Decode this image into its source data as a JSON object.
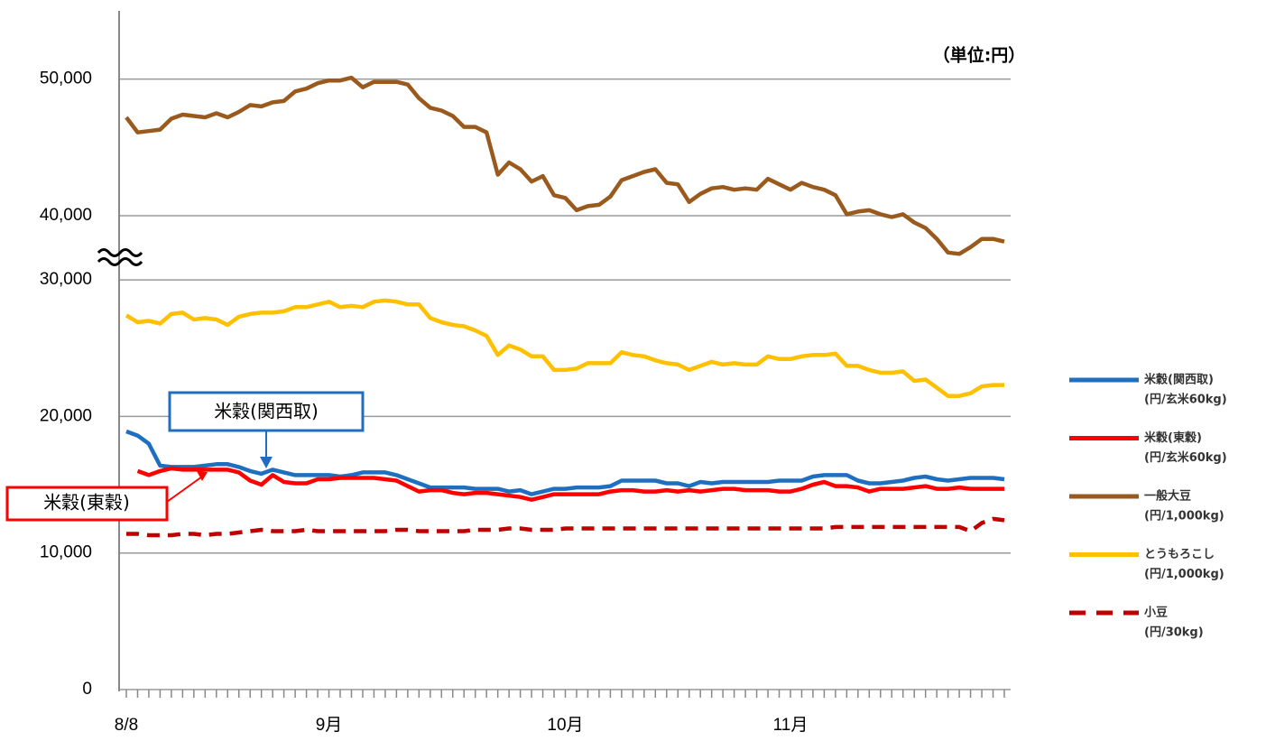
{
  "chart_data": {
    "type": "line",
    "unit_note": "（単位:円）",
    "categories": [
      "8/8",
      null,
      null,
      null,
      null,
      null,
      null,
      null,
      null,
      null,
      null,
      null,
      null,
      null,
      null,
      null,
      null,
      null,
      "9月",
      null,
      null,
      null,
      null,
      null,
      null,
      null,
      null,
      null,
      null,
      null,
      null,
      null,
      null,
      null,
      null,
      null,
      null,
      null,
      null,
      "10月",
      null,
      null,
      null,
      null,
      null,
      null,
      null,
      null,
      null,
      null,
      null,
      null,
      null,
      null,
      null,
      null,
      null,
      null,
      null,
      "11月",
      null,
      null,
      null,
      null,
      null,
      null,
      null,
      null,
      null,
      null,
      null,
      null,
      null,
      null,
      null,
      null,
      null,
      null,
      null
    ],
    "ylim": [
      0,
      55000
    ],
    "axis_break": [
      30500,
      35800
    ],
    "yticks": [
      0,
      {
        "value": 10000,
        "label": "10,000"
      },
      {
        "value": 20000,
        "label": "20,000"
      },
      {
        "value": 30000,
        "label": "30,000"
      },
      {
        "value": 40000,
        "label": "40,000"
      },
      {
        "value": 50000,
        "label": "50,000"
      }
    ],
    "grid": true,
    "legend": "right",
    "series": [
      {
        "name": "米穀(関西取)",
        "unit": "(円/玄米60kg)",
        "color": "#1f6fc0",
        "dash": false,
        "values": [
          18900,
          18600,
          18000,
          16400,
          16300,
          16300,
          16300,
          16400,
          16500,
          16500,
          16300,
          16000,
          15800,
          16100,
          15900,
          15700,
          15700,
          15700,
          15700,
          15600,
          15700,
          15900,
          15900,
          15900,
          15700,
          15400,
          15100,
          14800,
          14800,
          14800,
          14800,
          14700,
          14700,
          14700,
          14500,
          14600,
          14300,
          14500,
          14700,
          14700,
          14800,
          14800,
          14800,
          14900,
          15300,
          15300,
          15300,
          15300,
          15100,
          15100,
          14900,
          15200,
          15100,
          15200,
          15200,
          15200,
          15200,
          15200,
          15300,
          15300,
          15300,
          15600,
          15700,
          15700,
          15700,
          15300,
          15100,
          15100,
          15200,
          15300,
          15500,
          15600,
          15400,
          15300,
          15400,
          15500,
          15500,
          15500,
          15400
        ]
      },
      {
        "name": "米穀(東穀)",
        "unit": "(円/玄米60kg)",
        "color": "#ff0000",
        "dash": false,
        "values": [
          null,
          16000,
          15700,
          16000,
          16200,
          16100,
          16100,
          16100,
          16100,
          16100,
          15900,
          15300,
          15000,
          15700,
          15200,
          15100,
          15100,
          15400,
          15400,
          15500,
          15500,
          15500,
          15500,
          15400,
          15300,
          14900,
          14500,
          14600,
          14600,
          14400,
          14300,
          14400,
          14400,
          14300,
          14200,
          14100,
          13900,
          14100,
          14300,
          14300,
          14300,
          14300,
          14300,
          14500,
          14600,
          14600,
          14500,
          14500,
          14600,
          14500,
          14600,
          14500,
          14600,
          14700,
          14700,
          14600,
          14600,
          14600,
          14500,
          14500,
          14700,
          15000,
          15200,
          14900,
          14900,
          14800,
          14500,
          14700,
          14700,
          14700,
          14800,
          14900,
          14700,
          14700,
          14800,
          14700,
          14700,
          14700,
          14700
        ]
      },
      {
        "name": "一般大豆",
        "unit": "(円/1,000kg)",
        "color": "#9a5a1e",
        "dash": false,
        "values": [
          47200,
          46100,
          46200,
          46300,
          47100,
          47400,
          47300,
          47200,
          47500,
          47200,
          47600,
          48100,
          48000,
          48300,
          48400,
          49100,
          49300,
          49700,
          49900,
          49900,
          50100,
          49400,
          49800,
          49800,
          49800,
          49600,
          48600,
          47900,
          47700,
          47300,
          46500,
          46500,
          46100,
          43000,
          43900,
          43400,
          42500,
          42900,
          41500,
          41300,
          40400,
          40700,
          40800,
          41400,
          42600,
          42900,
          43200,
          43400,
          42400,
          42300,
          41000,
          41600,
          42000,
          42100,
          41900,
          42000,
          41900,
          42700,
          42300,
          41900,
          42400,
          42100,
          41900,
          41500,
          40100,
          40300,
          40400,
          40100,
          39900,
          40100,
          39500,
          39100,
          38300,
          37300,
          37200,
          37700,
          38300,
          38300,
          38100
        ]
      },
      {
        "name": "とうもろこし",
        "unit": "(円/1,000kg)",
        "color": "#ffc000",
        "dash": false,
        "values": [
          27400,
          26900,
          27000,
          26800,
          27500,
          27600,
          27100,
          27200,
          27100,
          26700,
          27300,
          27500,
          27600,
          27600,
          27700,
          28000,
          28000,
          28200,
          28400,
          28000,
          28100,
          28000,
          28400,
          28500,
          28400,
          28200,
          28200,
          27200,
          26900,
          26700,
          26600,
          26300,
          25900,
          24500,
          25200,
          24900,
          24400,
          24400,
          23400,
          23400,
          23500,
          23900,
          23900,
          23900,
          24700,
          24500,
          24400,
          24100,
          23900,
          23800,
          23400,
          23700,
          24000,
          23800,
          23900,
          23800,
          23800,
          24400,
          24200,
          24200,
          24400,
          24500,
          24500,
          24600,
          23700,
          23700,
          23400,
          23200,
          23200,
          23300,
          22600,
          22700,
          22100,
          21500,
          21500,
          21700,
          22200,
          22300,
          22300
        ]
      },
      {
        "name": "小豆",
        "unit": "(円/30kg)",
        "color": "#c00000",
        "dash": true,
        "values": [
          11400,
          11400,
          11300,
          11300,
          11300,
          11400,
          11400,
          11300,
          11400,
          11400,
          11500,
          11600,
          11700,
          11600,
          11600,
          11600,
          11700,
          11600,
          11600,
          11600,
          11600,
          11600,
          11600,
          11600,
          11700,
          11700,
          11600,
          11600,
          11600,
          11600,
          11600,
          11700,
          11700,
          11700,
          11800,
          11800,
          11700,
          11700,
          11700,
          11800,
          11800,
          11800,
          11800,
          11800,
          11800,
          11800,
          11800,
          11800,
          11800,
          11800,
          11800,
          11800,
          11800,
          11800,
          11800,
          11800,
          11800,
          11800,
          11800,
          11800,
          11800,
          11800,
          11800,
          11900,
          11900,
          11900,
          11900,
          11900,
          11900,
          11900,
          11900,
          11900,
          11900,
          11900,
          11900,
          11600,
          12200,
          12500,
          12400
        ]
      }
    ],
    "annotations": [
      {
        "text": "米穀(関西取)",
        "series": 0
      },
      {
        "text": "米穀(東穀)",
        "series": 1
      }
    ]
  }
}
